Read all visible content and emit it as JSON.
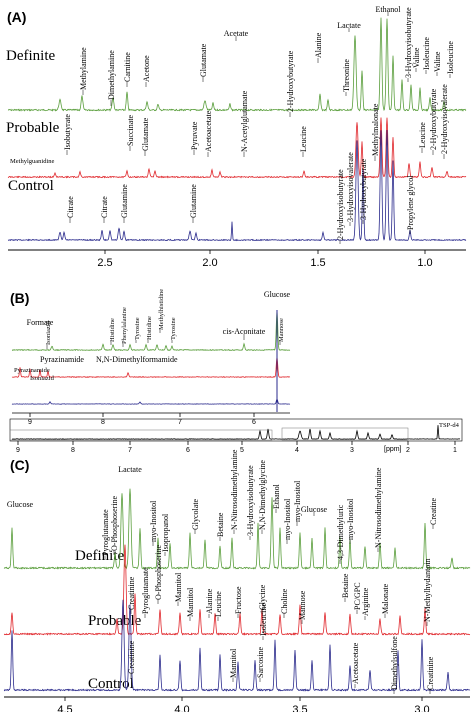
{
  "colors": {
    "definite": "#5a9e3c",
    "probable": "#e0262b",
    "control": "#2a2a8c",
    "axis": "#000000"
  },
  "chart_data": [
    {
      "type": "line",
      "panel_label": "(A)",
      "series": [
        {
          "name": "Definite"
        },
        {
          "name": "Probable"
        },
        {
          "name": "Control"
        }
      ],
      "xlim": [
        2.85,
        0.8
      ],
      "x_ticks": [
        "2.5",
        "2.0",
        "1.5",
        "1.0"
      ],
      "annotations": [
        "Methylamine",
        "Dimethylamine",
        "Carnitine",
        "Acetone",
        "Glutamate",
        "Acetate",
        "2-Hydroxybutyrate",
        "Alanine",
        "Threonine",
        "Lactate",
        "Ethanol",
        "3-Hydroxyisobutyrate",
        "Valine",
        "Isoleucine",
        "Valine",
        "Isoleucine",
        "Methylguanidine",
        "Isobutyrate",
        "Succinate",
        "Glutamate",
        "Pyruvate",
        "Acetoacetate",
        "N-Acetylglutamate",
        "Leucine",
        "Methylmalonate",
        "Leucine",
        "2-Hydroxybutyrate",
        "2-Hydroxyisovalerate",
        "Citrate",
        "Citrate",
        "Glutamine",
        "Glutamine",
        "2-Hydroxyisobutyrate",
        "3-Hydroxyisovalerate",
        "3-Hydroxybutyrate",
        "Propylene glycol"
      ]
    },
    {
      "type": "line",
      "panel_label": "(B)",
      "xlim": [
        9.3,
        5.5
      ],
      "x_ticks": [
        "9",
        "8",
        "7",
        "6"
      ],
      "overview_ticks": [
        "9",
        "8",
        "7",
        "6",
        "5",
        "4",
        "3",
        "2",
        "1"
      ],
      "overview_unit": "[ppm]",
      "overview_peak_label": "TSP-d4",
      "annotations": [
        "Formate",
        "Isoniazid",
        "Histidine",
        "Phenylalanine",
        "Tyrosine",
        "Histidine",
        "Methylhistidine",
        "Tyrosine",
        "cis-Aconitate",
        "Glucose",
        "Mannose",
        "Pyrazinamide",
        "Pyrazinamide",
        "Isoniazid",
        "N,N-Dimethylformamide"
      ]
    },
    {
      "type": "line",
      "panel_label": "(C)",
      "series": [
        {
          "name": "Definite"
        },
        {
          "name": "Probable"
        },
        {
          "name": "Control"
        }
      ],
      "xlim": [
        4.75,
        2.95
      ],
      "x_ticks": [
        "4.5",
        "4.0",
        "3.5",
        "3.0"
      ],
      "annotations": [
        "Glucose",
        "Lactate",
        "Pyroglutamate",
        "O-Phosphoserine",
        "myo-Inositol",
        "Isopropanol",
        "Glycolate",
        "Betaine",
        "N-Nitrosodimethylamine",
        "3-Hydroxyisobutyrate",
        "N,N-Dimethylglycine",
        "Ethanol",
        "myo-Inositol",
        "myo-Inositol",
        "Glucose",
        "4,3-Dimethyluric",
        "myo-Inositol",
        "N-Nitrosodimethylamine",
        "Creatine",
        "Creatinine",
        "Pyroglutamate",
        "O-Phosphoserine",
        "Mannitol",
        "Mannitol",
        "Alanine",
        "Leucine",
        "Fructose",
        "Glycine",
        "Choline",
        "Mannose",
        "Betaine",
        "PC/GPC",
        "Arginine",
        "Malonate",
        "N-Methylhydantoin",
        "Isoleucine",
        "Creatinine",
        "Mannitol",
        "Sarcosine",
        "Acetoacetate",
        "Dimethylsulfone",
        "Creatinine"
      ]
    }
  ],
  "labels": {
    "definite": "Definite",
    "probable": "Probable",
    "control": "Control"
  }
}
